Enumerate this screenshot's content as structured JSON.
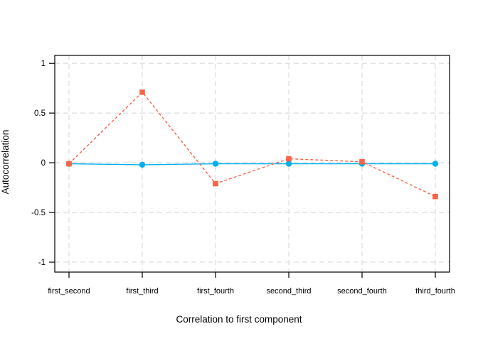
{
  "figure": {
    "background": "#FFFFFF"
  },
  "chart_data": {
    "type": "line",
    "title": "",
    "xlabel": "Correlation to first component",
    "ylabel": "Autocorrelation",
    "categories": [
      "first_second",
      "first_third",
      "first_fourth",
      "second_third",
      "second_fourth",
      "third_fourth"
    ],
    "series": [
      {
        "name": "cyan-circles-solid",
        "color": "#00B0EE",
        "marker": "circle",
        "line_style": "solid",
        "values": [
          -0.01,
          -0.02,
          -0.01,
          -0.01,
          -0.01,
          -0.01
        ]
      },
      {
        "name": "red-squares-dashed",
        "color": "#FA6347",
        "marker": "square",
        "line_style": "dashed",
        "values": [
          -0.01,
          0.71,
          -0.21,
          0.04,
          0.01,
          -0.34
        ]
      }
    ],
    "ylim": [
      -1.1,
      1.08
    ],
    "yticks": [
      -1,
      -0.5,
      0,
      0.5,
      1
    ],
    "ytick_labels": [
      "-1",
      "-0.5",
      "0",
      "0.5",
      "1"
    ],
    "grid": true,
    "grid_color": "#E4E4E4",
    "axis_color": "#000000",
    "legend": "none"
  }
}
